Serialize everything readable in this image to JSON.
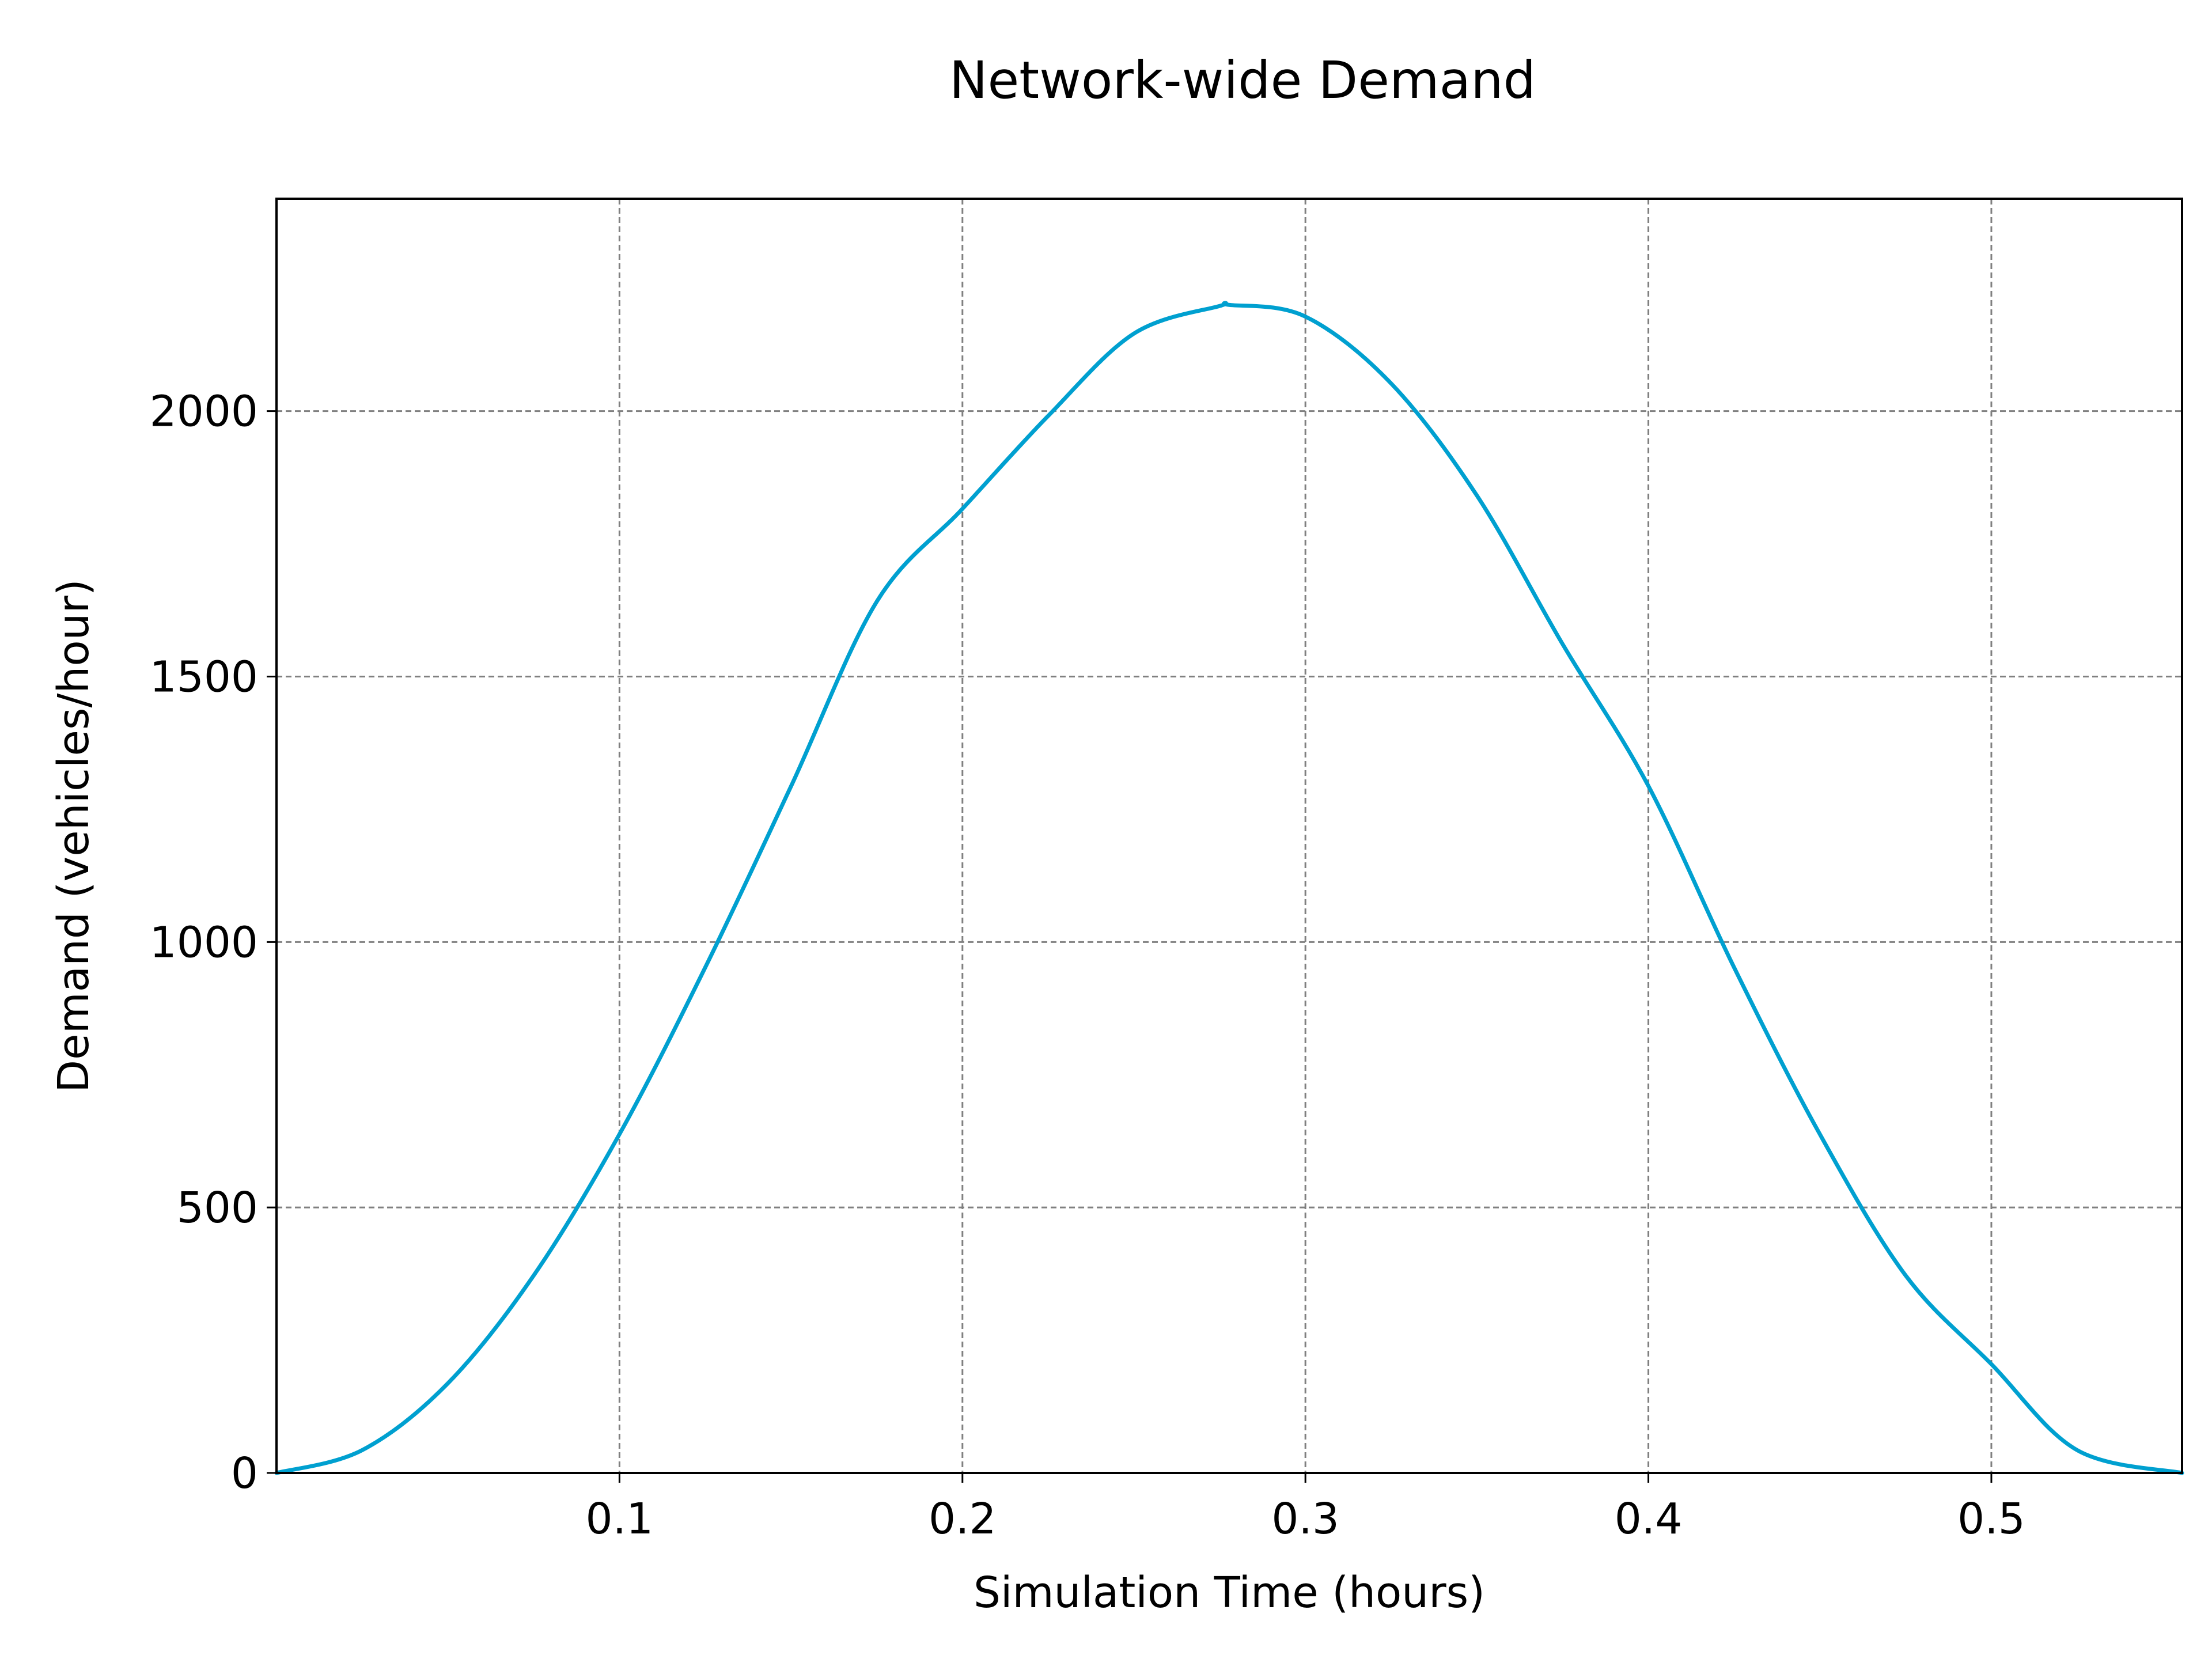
{
  "chart_data": {
    "type": "line",
    "title": "Network-wide Demand",
    "xlabel": "Simulation Time (hours)",
    "ylabel": "Demand (vehicles/hour)",
    "xlim": [
      0,
      0.5556
    ],
    "ylim": [
      0,
      2400
    ],
    "xticks": [
      0.1,
      0.2,
      0.3,
      0.4,
      0.5
    ],
    "xtick_labels": [
      "0.1",
      "0.2",
      "0.3",
      "0.4",
      "0.5"
    ],
    "yticks": [
      0,
      500,
      1000,
      1500,
      2000
    ],
    "ytick_labels": [
      "0",
      "500",
      "1000",
      "1500",
      "2000"
    ],
    "grid": true,
    "colors": {
      "line": "#00a0d0"
    },
    "series": [
      {
        "x": [
          0,
          0.025,
          0.05,
          0.075,
          0.1,
          0.125,
          0.15,
          0.175,
          0.2,
          0.225,
          0.25,
          0.275,
          0.2778,
          0.3,
          0.325,
          0.35,
          0.375,
          0.4,
          0.425,
          0.45,
          0.475,
          0.5,
          0.525,
          0.5556
        ],
        "values": [
          0,
          43,
          169,
          372,
          638,
          952,
          1293,
          1641,
          1816,
          1991,
          2146,
          2198,
          2200,
          2178,
          2052,
          1841,
          1561,
          1294,
          952,
          638,
          372,
          205,
          43,
          0
        ]
      }
    ]
  }
}
